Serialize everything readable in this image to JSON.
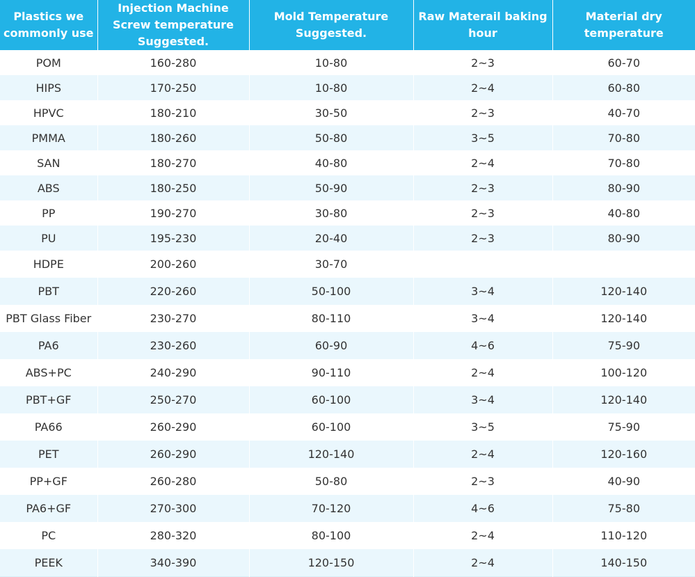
{
  "table": {
    "headers": [
      "Plastics we commonly use",
      "Injection Machine Screw temperature Suggested.",
      "Mold Temperature Suggested.",
      "Raw Materail baking hour",
      "Material dry temperature"
    ],
    "rows": [
      [
        "POM",
        "160-280",
        "10-80",
        "2~3",
        "60-70"
      ],
      [
        "HIPS",
        "170-250",
        "10-80",
        "2~4",
        "60-80"
      ],
      [
        "HPVC",
        "180-210",
        "30-50",
        "2~3",
        "40-70"
      ],
      [
        "PMMA",
        "180-260",
        "50-80",
        "3~5",
        "70-80"
      ],
      [
        "SAN",
        "180-270",
        "40-80",
        "2~4",
        "70-80"
      ],
      [
        "ABS",
        "180-250",
        "50-90",
        "2~3",
        "80-90"
      ],
      [
        "PP",
        "190-270",
        "30-80",
        "2~3",
        "40-80"
      ],
      [
        "PU",
        "195-230",
        "20-40",
        "2~3",
        "80-90"
      ],
      [
        "HDPE",
        "200-260",
        "30-70",
        "",
        ""
      ],
      [
        "PBT",
        "220-260",
        "50-100",
        "3~4",
        "120-140"
      ],
      [
        "PBT Glass Fiber",
        "230-270",
        "80-110",
        "3~4",
        "120-140"
      ],
      [
        "PA6",
        "230-260",
        "60-90",
        "4~6",
        "75-90"
      ],
      [
        "ABS+PC",
        "240-290",
        "90-110",
        "2~4",
        "100-120"
      ],
      [
        "PBT+GF",
        "250-270",
        "60-100",
        "3~4",
        "120-140"
      ],
      [
        "PA66",
        "260-290",
        "60-100",
        "3~5",
        "75-90"
      ],
      [
        "PET",
        "260-290",
        "120-140",
        "2~4",
        "120-160"
      ],
      [
        "PP+GF",
        "260-280",
        "50-80",
        "2~3",
        "40-90"
      ],
      [
        "PA6+GF",
        "270-300",
        "70-120",
        "4~6",
        "75-80"
      ],
      [
        "PC",
        "280-320",
        "80-100",
        "2~4",
        "110-120"
      ],
      [
        "PEEK",
        "340-390",
        "120-150",
        "2~4",
        "140-150"
      ]
    ]
  },
  "colors": {
    "header_bg": "#22b3e6",
    "header_text": "#ffffff",
    "stripe": "#eaf7fd",
    "body_text": "#333333"
  }
}
